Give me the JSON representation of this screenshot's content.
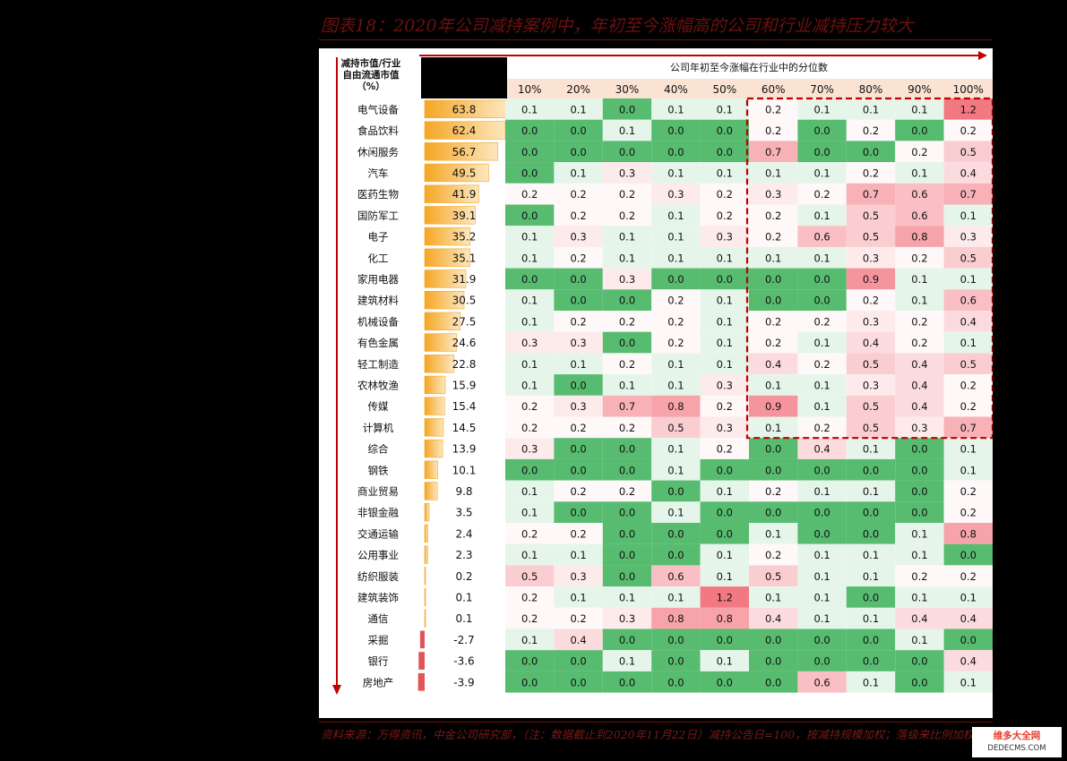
{
  "title": "图表18：2020年公司减持案例中，年初至今涨幅高的公司和行业减持压力较大",
  "source": "资料来源：万得资讯，中金公司研究部，（注：数据截止到2020年11月22日）减持公告日=100，按减持规模加权；落级来比例加权",
  "watermark": {
    "line1": "维多大全网",
    "line2": "DEDECMS.COM"
  },
  "colors": {
    "bar_start": "#f5a623",
    "bar_end": "#fde7c0",
    "bar_negative": "#e05555",
    "green_strong": "#57bb70",
    "white": "#ffffff",
    "red_strong": "#f27882",
    "header_band": "#fbe3d3",
    "highlight_box": "#c00000",
    "arrow": "#c00000"
  },
  "chart_data": {
    "type": "heatmap",
    "row_header": "减持市值/行业自由流通市值（%）",
    "row_header_lines": [
      "减持市值/行业",
      "自由流通市值",
      "（%）"
    ],
    "column_header": "公司年初至今涨幅在行业中的分位数",
    "columns": [
      "10%",
      "20%",
      "30%",
      "40%",
      "50%",
      "60%",
      "70%",
      "80%",
      "90%",
      "100%"
    ],
    "highlight_region": {
      "columns": [
        "60%",
        "100%"
      ],
      "rows": [
        "电气设备",
        "计算机"
      ]
    },
    "rows": [
      {
        "industry": "电气设备",
        "ratio": 63.8,
        "ratio_label": "63.8",
        "values": [
          0.1,
          0.1,
          0.0,
          0.1,
          0.1,
          0.2,
          0.1,
          0.1,
          0.1,
          1.2
        ]
      },
      {
        "industry": "食品饮料",
        "ratio": 62.4,
        "ratio_label": "62.4",
        "values": [
          0.0,
          0.0,
          0.1,
          0.0,
          0.0,
          0.2,
          0.0,
          0.2,
          0.0,
          0.2
        ]
      },
      {
        "industry": "休闲服务",
        "ratio": 56.7,
        "ratio_label": "56.7",
        "values": [
          0.0,
          0.0,
          0.0,
          0.0,
          0.0,
          0.7,
          0.0,
          0.0,
          0.2,
          0.5
        ]
      },
      {
        "industry": "汽车",
        "ratio": 49.5,
        "ratio_label": "49.5",
        "values": [
          0.0,
          0.1,
          0.3,
          0.1,
          0.1,
          0.1,
          0.1,
          0.2,
          0.1,
          0.4
        ]
      },
      {
        "industry": "医药生物",
        "ratio": 41.9,
        "ratio_label": "41.9",
        "values": [
          0.2,
          0.2,
          0.2,
          0.3,
          0.2,
          0.3,
          0.2,
          0.7,
          0.6,
          0.7
        ]
      },
      {
        "industry": "国防军工",
        "ratio": 39.1,
        "ratio_label": "39.1",
        "values": [
          0.0,
          0.2,
          0.2,
          0.1,
          0.2,
          0.2,
          0.1,
          0.5,
          0.6,
          0.1
        ]
      },
      {
        "industry": "电子",
        "ratio": 35.2,
        "ratio_label": "35.2",
        "values": [
          0.1,
          0.3,
          0.1,
          0.1,
          0.3,
          0.2,
          0.6,
          0.5,
          0.8,
          0.3
        ]
      },
      {
        "industry": "化工",
        "ratio": 35.1,
        "ratio_label": "35.1",
        "values": [
          0.1,
          0.2,
          0.1,
          0.1,
          0.1,
          0.1,
          0.1,
          0.3,
          0.2,
          0.5
        ]
      },
      {
        "industry": "家用电器",
        "ratio": 31.9,
        "ratio_label": "31.9",
        "values": [
          0.0,
          0.0,
          0.3,
          0.0,
          0.0,
          0.0,
          0.0,
          0.9,
          0.1,
          0.1
        ]
      },
      {
        "industry": "建筑材料",
        "ratio": 30.5,
        "ratio_label": "30.5",
        "values": [
          0.1,
          0.0,
          0.0,
          0.2,
          0.1,
          0.0,
          0.0,
          0.2,
          0.1,
          0.6
        ]
      },
      {
        "industry": "机械设备",
        "ratio": 27.5,
        "ratio_label": "27.5",
        "values": [
          0.1,
          0.2,
          0.2,
          0.2,
          0.1,
          0.2,
          0.2,
          0.3,
          0.2,
          0.4
        ]
      },
      {
        "industry": "有色金属",
        "ratio": 24.6,
        "ratio_label": "24.6",
        "values": [
          0.3,
          0.3,
          0.0,
          0.2,
          0.1,
          0.2,
          0.1,
          0.4,
          0.2,
          0.1
        ]
      },
      {
        "industry": "轻工制造",
        "ratio": 22.8,
        "ratio_label": "22.8",
        "values": [
          0.1,
          0.1,
          0.2,
          0.1,
          0.1,
          0.4,
          0.2,
          0.5,
          0.4,
          0.5
        ]
      },
      {
        "industry": "农林牧渔",
        "ratio": 15.9,
        "ratio_label": "15.9",
        "values": [
          0.1,
          0.0,
          0.1,
          0.1,
          0.3,
          0.1,
          0.1,
          0.3,
          0.4,
          0.2
        ]
      },
      {
        "industry": "传媒",
        "ratio": 15.4,
        "ratio_label": "15.4",
        "values": [
          0.2,
          0.3,
          0.7,
          0.8,
          0.2,
          0.9,
          0.1,
          0.5,
          0.4,
          0.2
        ]
      },
      {
        "industry": "计算机",
        "ratio": 14.5,
        "ratio_label": "14.5",
        "values": [
          0.2,
          0.2,
          0.2,
          0.5,
          0.3,
          0.1,
          0.2,
          0.5,
          0.3,
          0.7
        ]
      },
      {
        "industry": "综合",
        "ratio": 13.9,
        "ratio_label": "13.9",
        "values": [
          0.3,
          0.0,
          0.0,
          0.1,
          0.2,
          0.0,
          0.4,
          0.1,
          0.0,
          0.1
        ]
      },
      {
        "industry": "钢铁",
        "ratio": 10.1,
        "ratio_label": "10.1",
        "values": [
          0.0,
          0.0,
          0.0,
          0.1,
          0.0,
          0.0,
          0.0,
          0.0,
          0.0,
          0.1
        ]
      },
      {
        "industry": "商业贸易",
        "ratio": 9.8,
        "ratio_label": "9.8",
        "values": [
          0.1,
          0.2,
          0.2,
          0.0,
          0.1,
          0.2,
          0.1,
          0.1,
          0.0,
          0.2
        ]
      },
      {
        "industry": "非银金融",
        "ratio": 3.5,
        "ratio_label": "3.5",
        "values": [
          0.1,
          0.0,
          0.0,
          0.1,
          0.0,
          0.0,
          0.0,
          0.0,
          0.0,
          0.2
        ]
      },
      {
        "industry": "交通运输",
        "ratio": 2.4,
        "ratio_label": "2.4",
        "values": [
          0.2,
          0.2,
          0.0,
          0.0,
          0.0,
          0.1,
          0.0,
          0.0,
          0.1,
          0.8
        ]
      },
      {
        "industry": "公用事业",
        "ratio": 2.3,
        "ratio_label": "2.3",
        "values": [
          0.1,
          0.1,
          0.0,
          0.0,
          0.1,
          0.2,
          0.1,
          0.1,
          0.1,
          0.0
        ]
      },
      {
        "industry": "纺织服装",
        "ratio": 0.2,
        "ratio_label": "0.2",
        "values": [
          0.5,
          0.3,
          0.0,
          0.6,
          0.1,
          0.5,
          0.1,
          0.1,
          0.2,
          0.2
        ]
      },
      {
        "industry": "建筑装饰",
        "ratio": 0.1,
        "ratio_label": "0.1",
        "values": [
          0.2,
          0.1,
          0.1,
          0.1,
          1.2,
          0.1,
          0.1,
          0.0,
          0.1,
          0.1
        ]
      },
      {
        "industry": "通信",
        "ratio": 0.1,
        "ratio_label": "0.1",
        "values": [
          0.2,
          0.2,
          0.3,
          0.8,
          0.8,
          0.4,
          0.1,
          0.1,
          0.4,
          0.4
        ]
      },
      {
        "industry": "采掘",
        "ratio": -2.7,
        "ratio_label": "-2.7",
        "values": [
          0.1,
          0.4,
          0.0,
          0.0,
          0.0,
          0.0,
          0.0,
          0.0,
          0.1,
          0.0
        ]
      },
      {
        "industry": "银行",
        "ratio": -3.6,
        "ratio_label": "-3.6",
        "values": [
          0.0,
          0.0,
          0.1,
          0.0,
          0.1,
          0.0,
          0.0,
          0.0,
          0.0,
          0.4
        ]
      },
      {
        "industry": "房地产",
        "ratio": -3.9,
        "ratio_label": "-3.9",
        "values": [
          0.0,
          0.0,
          0.0,
          0.0,
          0.0,
          0.0,
          0.6,
          0.1,
          0.0,
          0.1
        ]
      }
    ]
  }
}
